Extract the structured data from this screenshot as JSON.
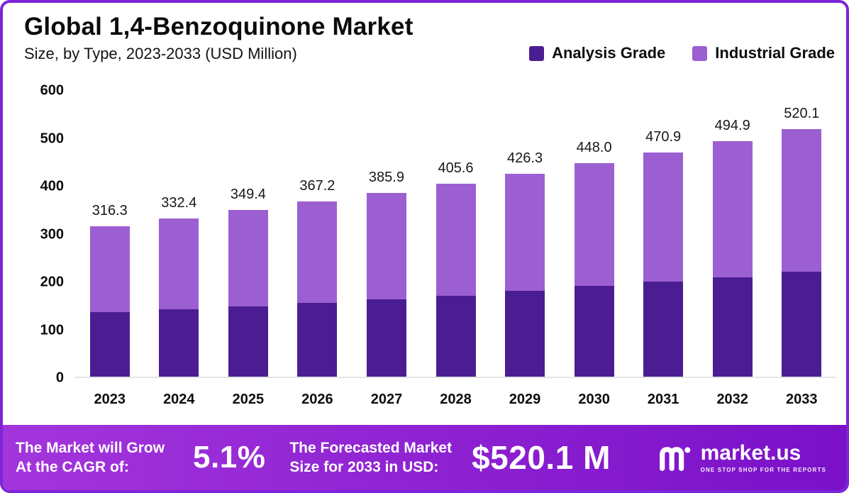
{
  "colors": {
    "border": "#7c24d8",
    "analysis": "#4b1d92",
    "industrial": "#9c5fd2",
    "footer_gradient_left": "#a335dc",
    "footer_gradient_right": "#7a10c8"
  },
  "header": {
    "title": "Global 1,4-Benzoquinone Market",
    "subtitle": "Size, by Type, 2023-2033 (USD Million)"
  },
  "legend": {
    "items": [
      {
        "label": "Analysis Grade"
      },
      {
        "label": "Industrial Grade"
      }
    ]
  },
  "chart_data": {
    "type": "bar",
    "stacked": true,
    "title": "Global 1,4-Benzoquinone Market Size, by Type, 2023-2033 (USD Million)",
    "xlabel": "",
    "ylabel": "USD Million",
    "categories": [
      "2023",
      "2024",
      "2025",
      "2026",
      "2027",
      "2028",
      "2029",
      "2030",
      "2031",
      "2032",
      "2033"
    ],
    "series": [
      {
        "name": "Analysis Grade",
        "values": [
          135.0,
          141.0,
          147.0,
          155.0,
          162.0,
          170.0,
          180.0,
          190.0,
          199.0,
          209.0,
          220.0
        ]
      },
      {
        "name": "Industrial Grade",
        "values": [
          181.3,
          191.4,
          202.4,
          212.2,
          223.9,
          235.6,
          246.3,
          258.0,
          271.9,
          285.9,
          300.1
        ]
      }
    ],
    "totals": [
      316.3,
      332.4,
      349.4,
      367.2,
      385.9,
      405.6,
      426.3,
      448.0,
      470.9,
      494.9,
      520.1
    ],
    "total_labels": [
      "316.3",
      "332.4",
      "349.4",
      "367.2",
      "385.9",
      "405.6",
      "426.3",
      "448.0",
      "470.9",
      "494.9",
      "520.1"
    ],
    "ylim": [
      0,
      600
    ],
    "y_ticks": [
      0,
      100,
      200,
      300,
      400,
      500,
      600
    ],
    "grid": false,
    "legend_position": "top-right"
  },
  "footer": {
    "cagr_line1": "The Market will Grow",
    "cagr_line2": "At the CAGR of:",
    "cagr_value": "5.1%",
    "forecast_line1": "The Forecasted Market",
    "forecast_line2": "Size for 2033 in USD:",
    "forecast_value": "$520.1 M",
    "brand_name": "market.us",
    "brand_tagline": "ONE STOP SHOP FOR THE REPORTS"
  }
}
